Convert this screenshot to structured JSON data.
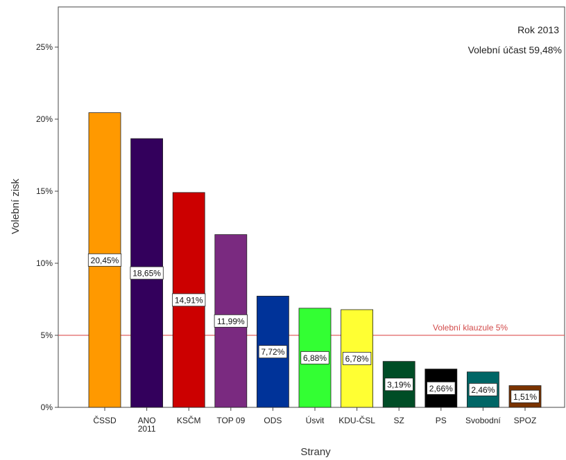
{
  "chart_data": {
    "type": "bar",
    "xlabel": "Strany",
    "ylabel": "Volební zisk",
    "ylim": [
      0,
      28
    ],
    "yticks": [
      0,
      5,
      10,
      15,
      20,
      25
    ],
    "ytick_labels": [
      "0%",
      "5%",
      "10%",
      "15%",
      "20%",
      "25%"
    ],
    "grid": false,
    "annotations": [
      "Rok 2013",
      "Volební účast 59,48%"
    ],
    "reference_line": {
      "value": 5,
      "label": "Volební klauzule 5%",
      "color": "#e06060"
    },
    "categories": [
      {
        "label": "ČSSD",
        "value": 20.45,
        "text": "20,45%",
        "color": "#ff9900"
      },
      {
        "label": "ANO 2011",
        "value": 18.65,
        "text": "18,65%",
        "color": "#33005c"
      },
      {
        "label": "KSČM",
        "value": 14.91,
        "text": "14,91%",
        "color": "#cc0000"
      },
      {
        "label": "TOP 09",
        "value": 11.99,
        "text": "11,99%",
        "color": "#7a2a80"
      },
      {
        "label": "ODS",
        "value": 7.72,
        "text": "7,72%",
        "color": "#003399"
      },
      {
        "label": "Úsvit",
        "value": 6.88,
        "text": "6,88%",
        "color": "#33ff33"
      },
      {
        "label": "KDU-ČSL",
        "value": 6.78,
        "text": "6,78%",
        "color": "#ffff33"
      },
      {
        "label": "SZ",
        "value": 3.19,
        "text": "3,19%",
        "color": "#004d26"
      },
      {
        "label": "PS",
        "value": 2.66,
        "text": "2,66%",
        "color": "#000000"
      },
      {
        "label": "Svobodní",
        "value": 2.46,
        "text": "2,46%",
        "color": "#006666"
      },
      {
        "label": "SPOZ",
        "value": 1.51,
        "text": "1,51%",
        "color": "#7a3300"
      }
    ]
  }
}
